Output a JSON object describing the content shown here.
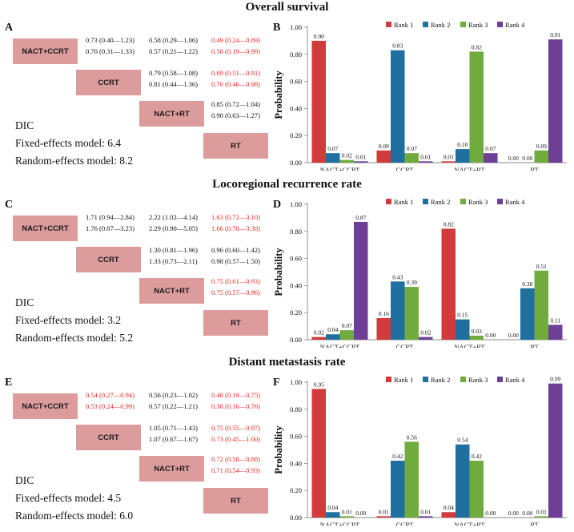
{
  "colors": {
    "box": "#dd9c9c",
    "highlight": "#e8251f",
    "rank1": "#d13b3b",
    "rank2": "#1f6fa0",
    "rank3": "#6fab3d",
    "rank4": "#6e3f95"
  },
  "legend": [
    "Rank 1",
    "Rank 2",
    "Rank 3",
    "Rank 4"
  ],
  "sections": [
    {
      "title": "Overall survival",
      "league_letter": "A",
      "chart_letter": "B",
      "treatments": [
        "NACT+CCRT",
        "CCRT",
        "NACT+RT",
        "RT"
      ],
      "cells": [
        {
          "row": 0,
          "col": 1,
          "fixed": "0.73 (0.40—1.23)",
          "random": "0.70 (0.31—1.33)",
          "sig": false
        },
        {
          "row": 0,
          "col": 2,
          "fixed": "0.58 (0.29—1.06)",
          "random": "0.57 (0.21—1.22)",
          "sig": false
        },
        {
          "row": 0,
          "col": 3,
          "fixed": "0.49 (0.24—0.89)",
          "random": "0.50 (0.19—0.99)",
          "sig": true
        },
        {
          "row": 1,
          "col": 2,
          "fixed": "0.79 (0.58—1.08)",
          "random": "0.81 (0.44—1.36)",
          "sig": false
        },
        {
          "row": 1,
          "col": 3,
          "fixed": "0.69 (0.51—0.91)",
          "random": "0.70 (0.46—0.98)",
          "sig": true
        },
        {
          "row": 2,
          "col": 3,
          "fixed": "0.85 (0.72—1.04)",
          "random": "0.90 (0.63—1.27)",
          "sig": false
        }
      ],
      "dic": {
        "label": "DIC",
        "fixed": "Fixed-effects model: 6.4",
        "random": "Random-effects model: 8.2"
      },
      "chart_data": {
        "type": "bar",
        "ylabel": "Probability",
        "ylim": [
          0,
          1
        ],
        "yticks": [
          "0.00",
          "0.20",
          "0.40",
          "0.60",
          "0.80",
          "1.00"
        ],
        "categories": [
          "NACT+CCRT",
          "CCRT",
          "NACT+RT",
          "RT"
        ],
        "series": [
          {
            "name": "Rank 1",
            "values": [
              0.9,
              0.09,
              0.01,
              0.0
            ]
          },
          {
            "name": "Rank 2",
            "values": [
              0.07,
              0.83,
              0.1,
              0.0
            ]
          },
          {
            "name": "Rank 3",
            "values": [
              0.02,
              0.07,
              0.82,
              0.09
            ]
          },
          {
            "name": "Rank 4",
            "values": [
              0.01,
              0.01,
              0.07,
              0.91
            ]
          }
        ]
      }
    },
    {
      "title": "Locoregional recurrence rate",
      "league_letter": "C",
      "chart_letter": "D",
      "treatments": [
        "NACT+CCRT",
        "CCRT",
        "NACT+RT",
        "RT"
      ],
      "cells": [
        {
          "row": 0,
          "col": 1,
          "fixed": "1.71 (0.94—2.84)",
          "random": "1.76 (0.87—3.23)",
          "sig": false
        },
        {
          "row": 0,
          "col": 2,
          "fixed": "2.22 (1.02—4.14)",
          "random": "2.29 (0.90—5.05)",
          "sig": false
        },
        {
          "row": 0,
          "col": 3,
          "fixed": "1.63 (0.72—3.10)",
          "random": "1.66 (0.70—3.30)",
          "sig": true
        },
        {
          "row": 1,
          "col": 2,
          "fixed": "1.30 (0.81—1.96)",
          "random": "1.33 (0.73—2.11)",
          "sig": false
        },
        {
          "row": 1,
          "col": 3,
          "fixed": "0.96 (0.60—1.42)",
          "random": "0.98 (0.57—1.50)",
          "sig": false
        },
        {
          "row": 2,
          "col": 3,
          "fixed": "0.75 (0.61—0.93)",
          "random": "0.75 (0.57—0.96)",
          "sig": true
        }
      ],
      "dic": {
        "label": "DIC",
        "fixed": "Fixed-effects model: 3.2",
        "random": "Random-effects model: 5.2"
      },
      "chart_data": {
        "type": "bar",
        "ylabel": "Probability",
        "ylim": [
          0,
          1
        ],
        "yticks": [
          "0.00",
          "0.20",
          "0.40",
          "0.60",
          "0.80",
          "1.00"
        ],
        "categories": [
          "NACT+CCRT",
          "CCRT",
          "NACT+RT",
          "RT"
        ],
        "series": [
          {
            "name": "Rank 1",
            "values": [
              0.02,
              0.16,
              0.82,
              0.0
            ]
          },
          {
            "name": "Rank 2",
            "values": [
              0.04,
              0.43,
              0.15,
              0.38
            ]
          },
          {
            "name": "Rank 3",
            "values": [
              0.07,
              0.39,
              0.03,
              0.51
            ]
          },
          {
            "name": "Rank 4",
            "values": [
              0.87,
              0.02,
              0.0,
              0.11
            ]
          }
        ]
      }
    },
    {
      "title": "Distant metastasis rate",
      "league_letter": "E",
      "chart_letter": "F",
      "treatments": [
        "NACT+CCRT",
        "CCRT",
        "NACT+RT",
        "RT"
      ],
      "cells": [
        {
          "row": 0,
          "col": 1,
          "fixed": "0.54 (0.27—0.94)",
          "random": "0.53 (0.24—0.99)",
          "sig": true
        },
        {
          "row": 0,
          "col": 2,
          "fixed": "0.56 (0.23—1.02)",
          "random": "0.57 (0.22—1.21)",
          "sig": false
        },
        {
          "row": 0,
          "col": 3,
          "fixed": "0.40 (0.19—0.75)",
          "random": "0.38 (0.16—0.76)",
          "sig": true
        },
        {
          "row": 1,
          "col": 2,
          "fixed": "1.05 (0.71—1.43)",
          "random": "1.07 (0.67—1.67)",
          "sig": false
        },
        {
          "row": 1,
          "col": 3,
          "fixed": "0.75 (0.55—0.97)",
          "random": "0.73 (0.45—1.00)",
          "sig": true
        },
        {
          "row": 2,
          "col": 3,
          "fixed": "0.72 (0.58—0.88)",
          "random": "0.71 (0.54—0.93)",
          "sig": true
        }
      ],
      "dic": {
        "label": "DIC",
        "fixed": "Fixed-effects model: 4.5",
        "random": "Random-effects model: 6.0"
      },
      "chart_data": {
        "type": "bar",
        "ylabel": "Probability",
        "ylim": [
          0,
          1
        ],
        "yticks": [
          "0.00",
          "0.20",
          "0.40",
          "0.60",
          "0.80",
          "1.00"
        ],
        "categories": [
          "NACT+CCRT",
          "CCRT",
          "NACT+RT",
          "RT"
        ],
        "series": [
          {
            "name": "Rank 1",
            "values": [
              0.95,
              0.01,
              0.04,
              0.0
            ]
          },
          {
            "name": "Rank 2",
            "values": [
              0.04,
              0.42,
              0.54,
              0.0
            ]
          },
          {
            "name": "Rank 3",
            "values": [
              0.01,
              0.56,
              0.42,
              0.01
            ]
          },
          {
            "name": "Rank 4",
            "values": [
              0.0,
              0.01,
              0.0,
              0.99
            ]
          }
        ]
      }
    }
  ]
}
